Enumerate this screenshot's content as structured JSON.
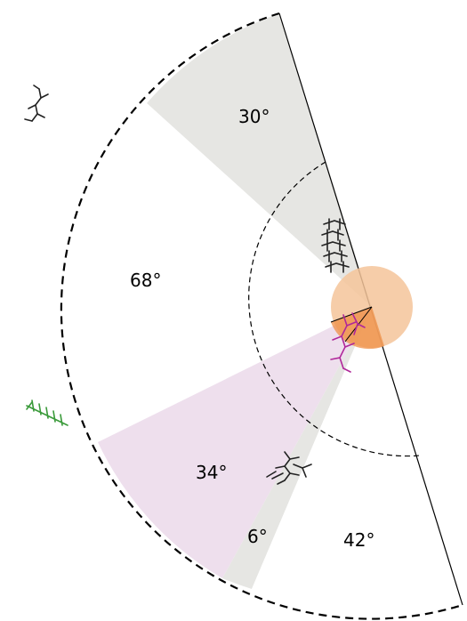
{
  "diagram": {
    "sectors": [
      {
        "id": "sector-30",
        "label": "30°",
        "degrees": 30,
        "fill": "#e6e6e3"
      },
      {
        "id": "sector-68",
        "label": "68°",
        "degrees": 68,
        "fill": "#ffffff"
      },
      {
        "id": "sector-34",
        "label": "34°",
        "degrees": 34,
        "fill": "#eedfed"
      },
      {
        "id": "sector-6",
        "label": "6°",
        "degrees": 6,
        "fill": "#e6e6e3"
      },
      {
        "id": "sector-42",
        "label": "42°",
        "degrees": 42,
        "fill": "#ffffff"
      }
    ],
    "colors": {
      "outline": "#000000",
      "center_disc": "#f5c49a",
      "center_wedge": "#ef8f45",
      "molecule_black": "#222222",
      "molecule_magenta": "#b0289a",
      "molecule_green": "#3a9a3a"
    },
    "icons": {
      "top_left": "molecule-icon",
      "wall_stack": "molecule-stack-icon",
      "center_chain": "molecule-chain-icon",
      "bottom_cluster": "molecule-cluster-icon",
      "left_green": "molecule-chain-icon"
    }
  }
}
